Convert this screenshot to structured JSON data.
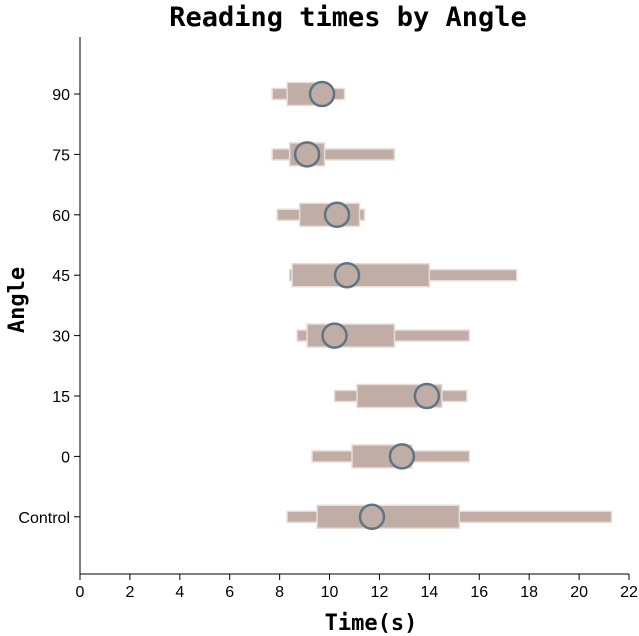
{
  "chart_data": {
    "type": "boxplot",
    "title": "Reading times by Angle",
    "xlabel": "Time(s)",
    "ylabel": "Angle",
    "xlim": [
      0,
      22
    ],
    "xticks": [
      "0",
      "2",
      "4",
      "6",
      "8",
      "10",
      "12",
      "14",
      "16",
      "18",
      "20",
      "22"
    ],
    "categories": [
      "90",
      "75",
      "60",
      "45",
      "30",
      "15",
      "0",
      "Control"
    ],
    "colors": {
      "box_fill": "#bfada6",
      "box_outline": "#e8dcd7",
      "marker_fill": "#bfada6",
      "marker_stroke": "#5f7583"
    },
    "series": [
      {
        "category": "90",
        "min": 7.7,
        "q1": 8.3,
        "q3": 9.8,
        "max": 10.6,
        "center": 9.7
      },
      {
        "category": "75",
        "min": 7.7,
        "q1": 8.4,
        "q3": 9.8,
        "max": 12.6,
        "center": 9.1
      },
      {
        "category": "60",
        "min": 7.9,
        "q1": 8.8,
        "q3": 11.2,
        "max": 11.4,
        "center": 10.3
      },
      {
        "category": "45",
        "min": 8.4,
        "q1": 8.5,
        "q3": 14.0,
        "max": 17.5,
        "center": 10.7
      },
      {
        "category": "30",
        "min": 8.7,
        "q1": 9.1,
        "q3": 12.6,
        "max": 15.6,
        "center": 10.2
      },
      {
        "category": "15",
        "min": 10.2,
        "q1": 11.1,
        "q3": 14.5,
        "max": 15.5,
        "center": 13.9
      },
      {
        "category": "0",
        "min": 9.3,
        "q1": 10.9,
        "q3": 13.3,
        "max": 15.6,
        "center": 12.9
      },
      {
        "category": "Control",
        "min": 8.3,
        "q1": 9.5,
        "q3": 15.2,
        "max": 21.3,
        "center": 11.7
      }
    ]
  }
}
